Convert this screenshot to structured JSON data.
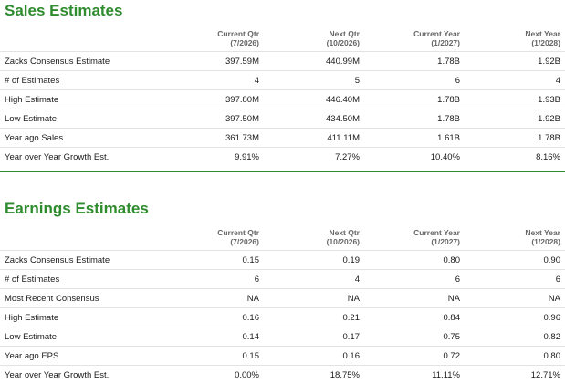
{
  "sales": {
    "title": "Sales Estimates",
    "headers": [
      {
        "line1": "Current Qtr",
        "line2": "(7/2026)"
      },
      {
        "line1": "Next Qtr",
        "line2": "(10/2026)"
      },
      {
        "line1": "Current Year",
        "line2": "(1/2027)"
      },
      {
        "line1": "Next Year",
        "line2": "(1/2028)"
      }
    ],
    "rows": [
      {
        "label": "Zacks Consensus Estimate",
        "values": [
          "397.59M",
          "440.99M",
          "1.78B",
          "1.92B"
        ]
      },
      {
        "label": "# of Estimates",
        "values": [
          "4",
          "5",
          "6",
          "4"
        ]
      },
      {
        "label": "High Estimate",
        "values": [
          "397.80M",
          "446.40M",
          "1.78B",
          "1.93B"
        ]
      },
      {
        "label": "Low Estimate",
        "values": [
          "397.50M",
          "434.50M",
          "1.78B",
          "1.92B"
        ]
      },
      {
        "label": "Year ago Sales",
        "values": [
          "361.73M",
          "411.11M",
          "1.61B",
          "1.78B"
        ]
      },
      {
        "label": "Year over Year Growth Est.",
        "values": [
          "9.91%",
          "7.27%",
          "10.40%",
          "8.16%"
        ]
      }
    ]
  },
  "earnings": {
    "title": "Earnings Estimates",
    "headers": [
      {
        "line1": "Current Qtr",
        "line2": "(7/2026)"
      },
      {
        "line1": "Next Qtr",
        "line2": "(10/2026)"
      },
      {
        "line1": "Current Year",
        "line2": "(1/2027)"
      },
      {
        "line1": "Next Year",
        "line2": "(1/2028)"
      }
    ],
    "rows": [
      {
        "label": "Zacks Consensus Estimate",
        "values": [
          "0.15",
          "0.19",
          "0.80",
          "0.90"
        ]
      },
      {
        "label": "# of Estimates",
        "values": [
          "6",
          "4",
          "6",
          "6"
        ]
      },
      {
        "label": "Most Recent Consensus",
        "values": [
          "NA",
          "NA",
          "NA",
          "NA"
        ]
      },
      {
        "label": "High Estimate",
        "values": [
          "0.16",
          "0.21",
          "0.84",
          "0.96"
        ]
      },
      {
        "label": "Low Estimate",
        "values": [
          "0.14",
          "0.17",
          "0.75",
          "0.82"
        ]
      },
      {
        "label": "Year ago EPS",
        "values": [
          "0.15",
          "0.16",
          "0.72",
          "0.80"
        ]
      },
      {
        "label": "Year over Year Growth Est.",
        "values": [
          "0.00%",
          "18.75%",
          "11.11%",
          "12.71%"
        ]
      }
    ]
  },
  "colors": {
    "accent": "#2e8b2e",
    "header_text": "#666666",
    "row_border": "#e3e3e3"
  }
}
